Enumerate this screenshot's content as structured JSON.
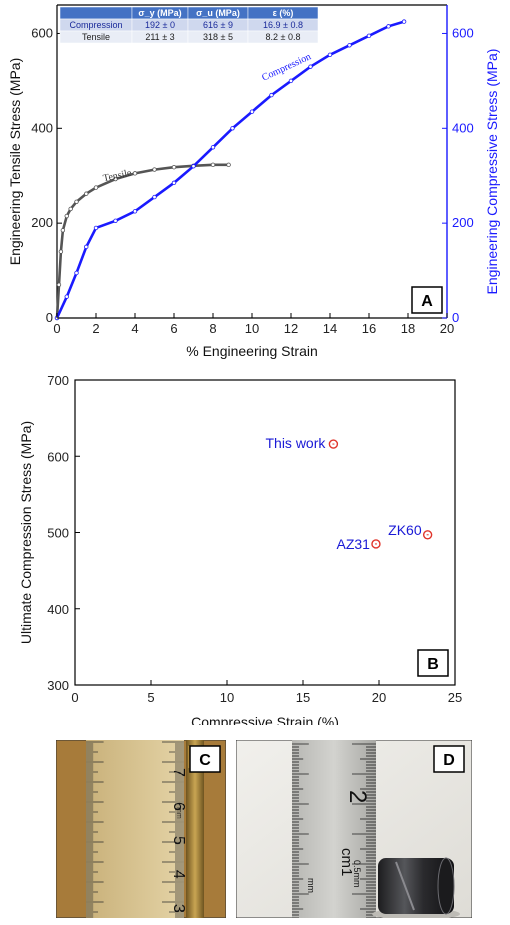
{
  "chart_data": [
    {
      "panel": "A",
      "type": "line",
      "xlabel": "% Engineering Strain",
      "ylabel": "Engineering Tensile Stress (MPa)",
      "y2label": "Engineering Compressive Stress (MPa)",
      "xlim": [
        0,
        20
      ],
      "ylim": [
        0,
        660
      ],
      "y2lim": [
        0,
        660
      ],
      "xticks": [
        0,
        2,
        4,
        6,
        8,
        10,
        12,
        14,
        16,
        18,
        20
      ],
      "yticks": [
        0,
        200,
        400,
        600
      ],
      "y2ticks": [
        0,
        200,
        400,
        600
      ],
      "series": [
        {
          "name": "Tensile",
          "color": "#555555",
          "axis": "left",
          "x": [
            0,
            0.1,
            0.2,
            0.3,
            0.5,
            0.7,
            1.0,
            1.5,
            2.0,
            3.0,
            4.0,
            5.0,
            6.0,
            7.0,
            8.0,
            8.8
          ],
          "y": [
            0,
            70,
            140,
            185,
            215,
            230,
            245,
            262,
            275,
            293,
            305,
            313,
            318,
            321,
            323,
            323
          ]
        },
        {
          "name": "Compression",
          "color": "#1a1aff",
          "axis": "right",
          "x": [
            0,
            0.5,
            1.0,
            1.5,
            2.0,
            3.0,
            4.0,
            5.0,
            6.0,
            7.0,
            8.0,
            9.0,
            10.0,
            11.0,
            12.0,
            13.0,
            14.0,
            15.0,
            16.0,
            17.0,
            17.8
          ],
          "y": [
            0,
            45,
            95,
            150,
            190,
            205,
            225,
            255,
            285,
            320,
            360,
            400,
            435,
            470,
            500,
            530,
            555,
            575,
            595,
            615,
            625
          ]
        }
      ],
      "table": {
        "headers": [
          "",
          "σ_y (MPa)",
          "σ_u (MPa)",
          "ε (%)"
        ],
        "rows": [
          [
            "Compression",
            "192 ± 0",
            "616 ± 9",
            "16.9 ± 0.8"
          ],
          [
            "Tensile",
            "211 ± 3",
            "318 ± 5",
            "8.2 ± 0.8"
          ]
        ]
      }
    },
    {
      "panel": "B",
      "type": "scatter",
      "xlabel": "Compressive Strain (%)",
      "ylabel": "Ultimate Compression Stress (MPa)",
      "xlim": [
        0,
        25
      ],
      "ylim": [
        300,
        700
      ],
      "xticks": [
        0,
        5,
        10,
        15,
        20,
        25
      ],
      "yticks": [
        300,
        400,
        500,
        600,
        700
      ],
      "points": [
        {
          "label": "This work",
          "x": 17.0,
          "y": 616
        },
        {
          "label": "AZ31",
          "x": 19.8,
          "y": 485
        },
        {
          "label": "ZK60",
          "x": 23.2,
          "y": 497
        }
      ],
      "marker_color": "#e0342b",
      "label_color": "#1a1ad6"
    }
  ],
  "photos": [
    {
      "panel": "C",
      "ruler_labels": [
        "7",
        "6",
        "5",
        "4",
        "3"
      ],
      "unit_mark": "mm"
    },
    {
      "panel": "D",
      "ruler_labels": [
        "2",
        "cm1",
        "0.5mm"
      ],
      "unit_mark": "mm"
    }
  ]
}
